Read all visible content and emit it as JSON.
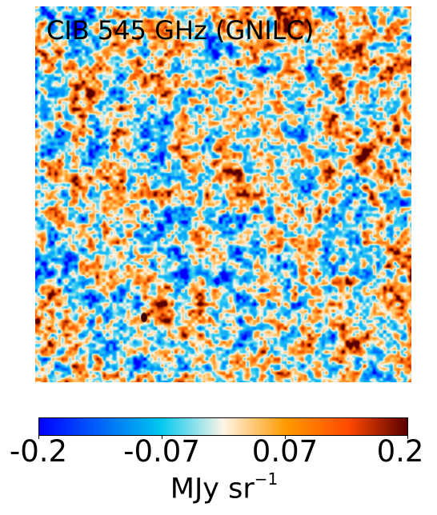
{
  "map": {
    "title": "CIB 545 GHz (GNILC)"
  },
  "colorbar": {
    "tick_labels": [
      "-0.2",
      "-0.07",
      "0.07",
      "0.2"
    ],
    "unit_main": "MJy sr",
    "unit_exp": "−1",
    "colors": {
      "min": "#0000ff",
      "low": "#00c8f0",
      "mid": "#fff5e6",
      "high": "#ff9a00",
      "max": "#5a0000"
    }
  }
}
